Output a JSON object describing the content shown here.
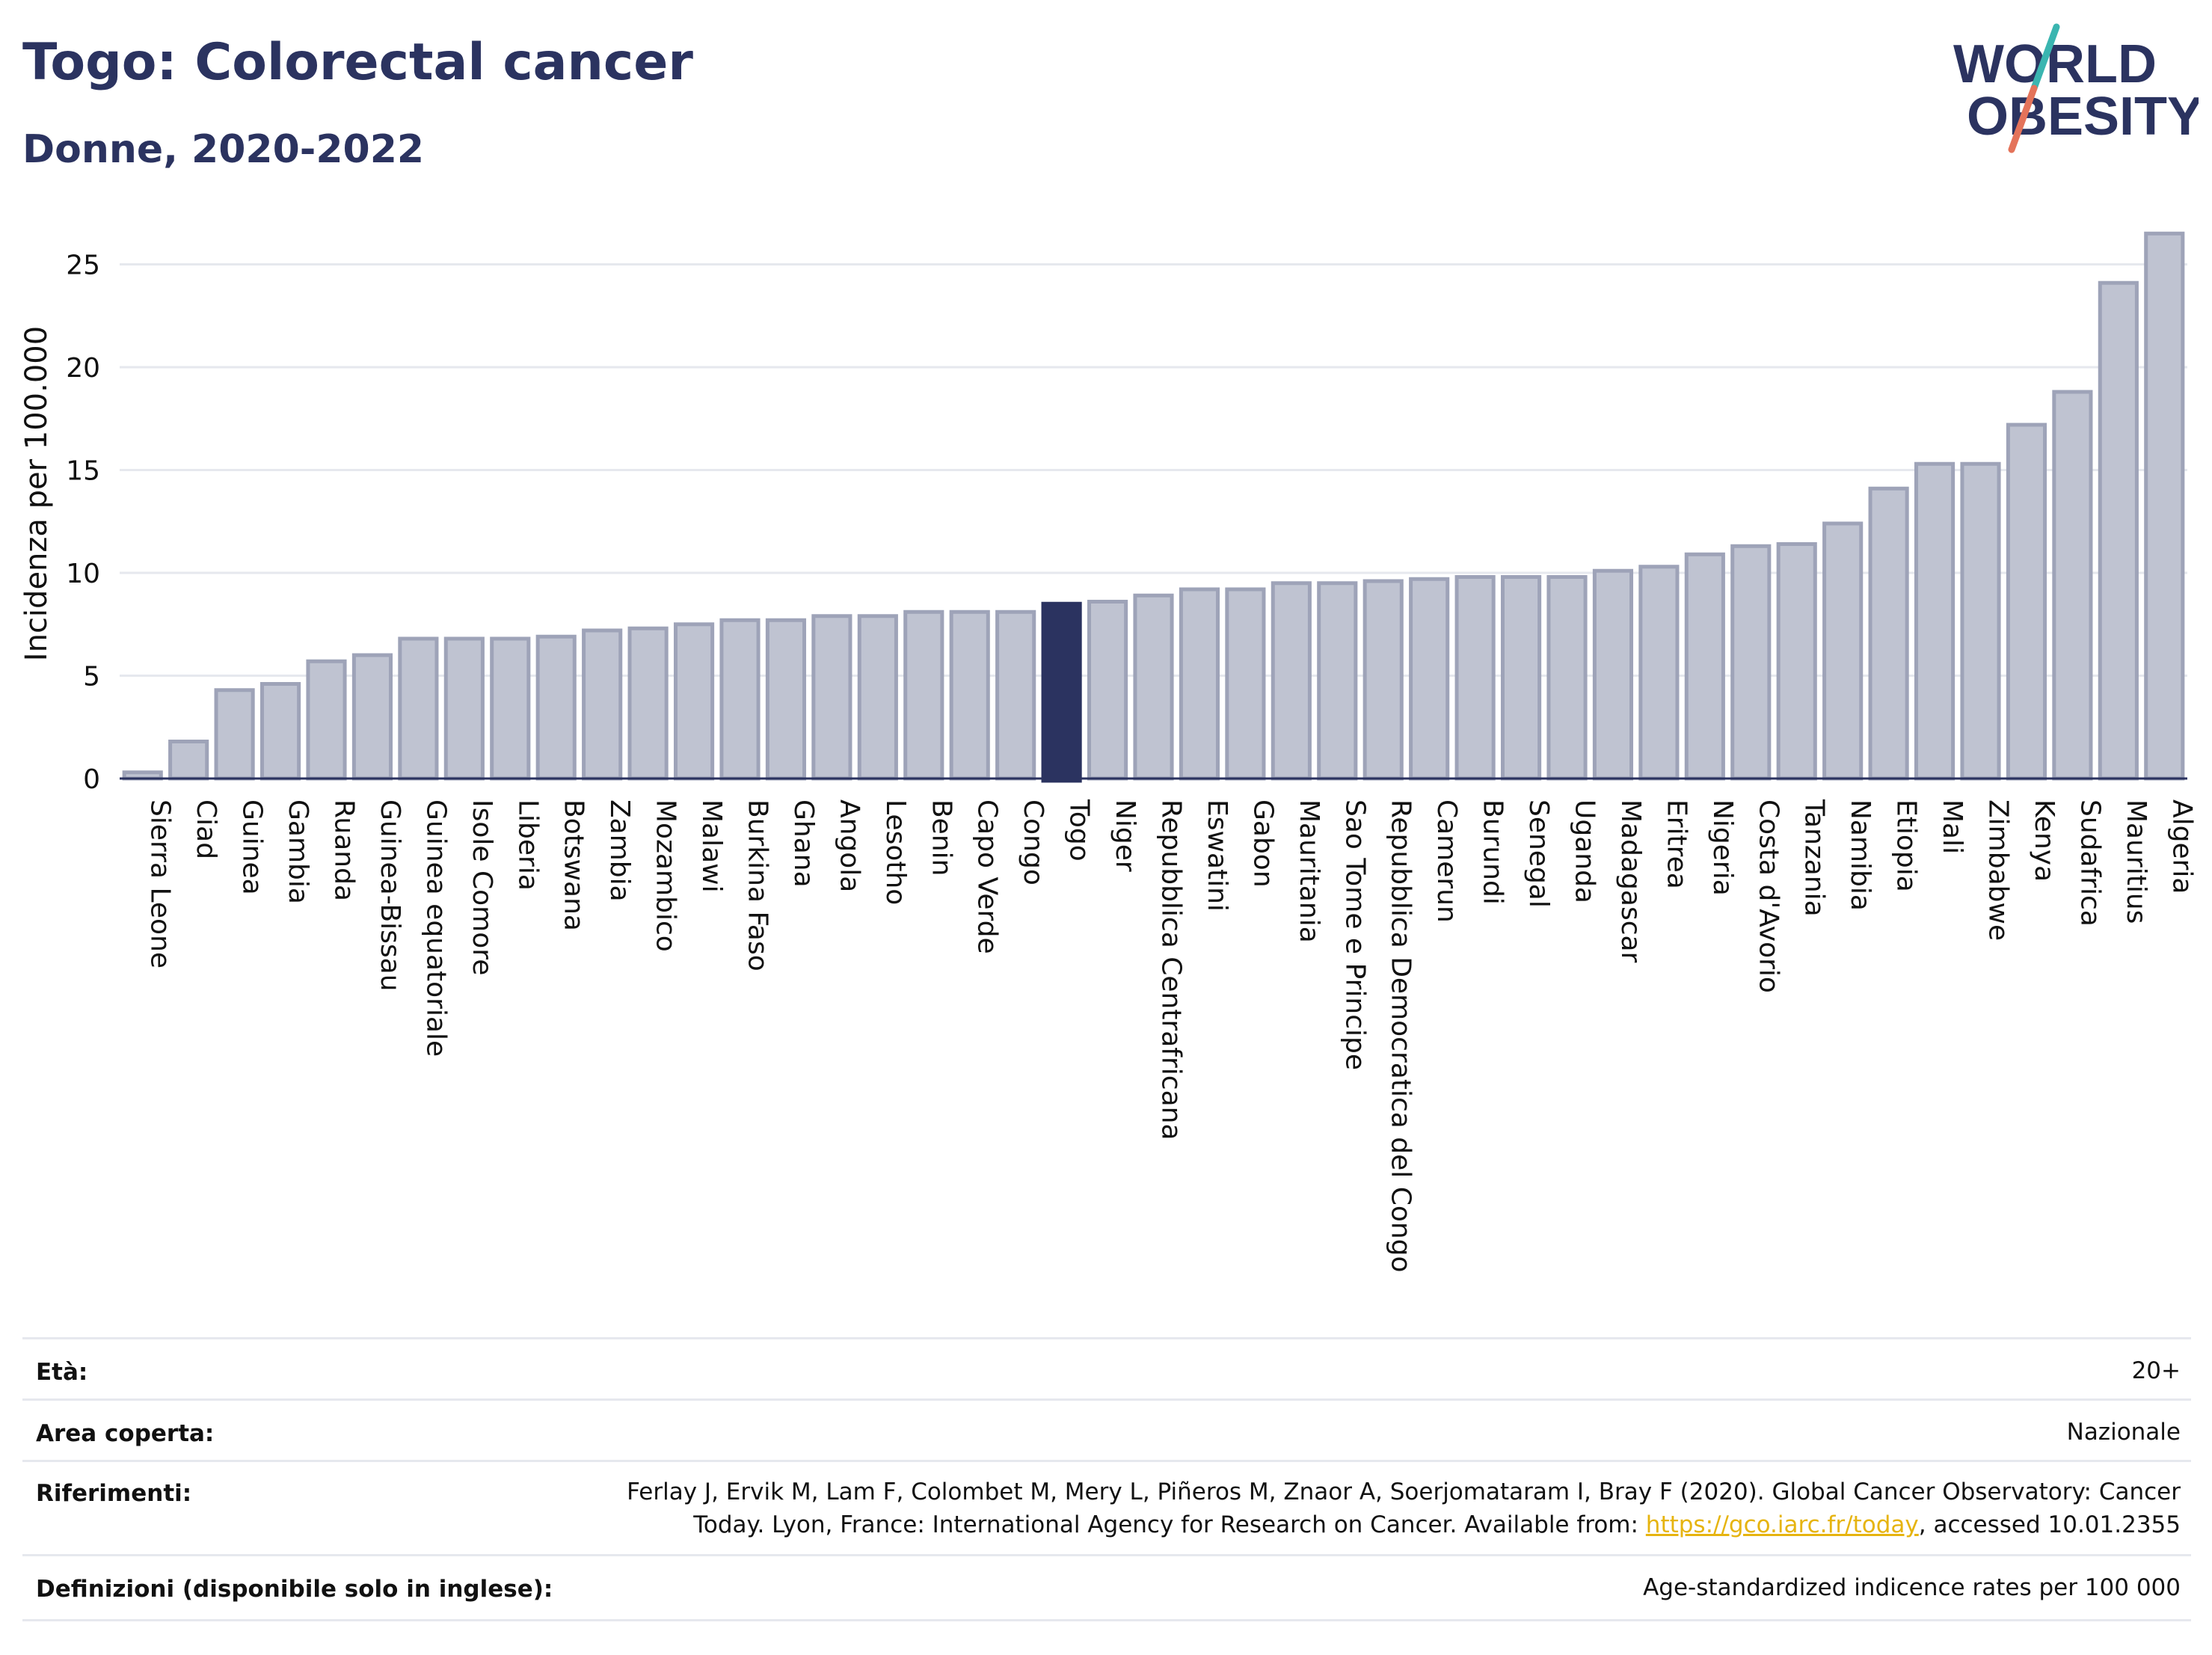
{
  "header": {
    "title": "Togo: Colorectal cancer",
    "subtitle": "Donne, 2020-2022",
    "logo_line1": "WORLD",
    "logo_line2": "OBESITY"
  },
  "colors": {
    "title": "#2b3360",
    "bar": "#bfc3d1",
    "bar_stroke": "#9ea3b8",
    "highlight": "#2b3360",
    "logo_teal": "#3ab5b0",
    "logo_coral": "#e4735a",
    "link": "#e6b410"
  },
  "chart_data": {
    "type": "bar",
    "title": "Togo: Colorectal cancer",
    "subtitle": "Donne, 2020-2022",
    "ylabel": "Incidenza per 100.000",
    "xlabel": "",
    "ylim": [
      0,
      27
    ],
    "yticks": [
      0,
      5,
      10,
      15,
      20,
      25
    ],
    "grid": true,
    "highlight": "Togo",
    "categories": [
      "Sierra Leone",
      "Ciad",
      "Guinea",
      "Gambia",
      "Ruanda",
      "Guinea-Bissau",
      "Guinea equatoriale",
      "Isole Comore",
      "Liberia",
      "Botswana",
      "Zambia",
      "Mozambico",
      "Malawi",
      "Burkina Faso",
      "Ghana",
      "Angola",
      "Lesotho",
      "Benin",
      "Capo Verde",
      "Congo",
      "Togo",
      "Niger",
      "Repubblica Centrafricana",
      "Eswatini",
      "Gabon",
      "Mauritania",
      "Sao Tome e Principe",
      "Repubblica Democratica del Congo",
      "Camerun",
      "Burundi",
      "Senegal",
      "Uganda",
      "Madagascar",
      "Eritrea",
      "Nigeria",
      "Costa d'Avorio",
      "Tanzania",
      "Namibia",
      "Etiopia",
      "Mali",
      "Zimbabwe",
      "Kenya",
      "Sudafrica",
      "Mauritius",
      "Algeria"
    ],
    "values": [
      0.3,
      1.8,
      4.3,
      4.6,
      5.7,
      6.0,
      6.8,
      6.8,
      6.8,
      6.9,
      7.2,
      7.3,
      7.5,
      7.7,
      7.7,
      7.9,
      7.9,
      8.1,
      8.1,
      8.1,
      8.5,
      8.6,
      8.9,
      9.2,
      9.2,
      9.5,
      9.5,
      9.6,
      9.7,
      9.8,
      9.8,
      9.8,
      10.1,
      10.3,
      10.9,
      11.3,
      11.4,
      12.4,
      14.1,
      15.3,
      15.3,
      17.2,
      18.8,
      24.1,
      26.5
    ]
  },
  "meta": {
    "age_label": "Età:",
    "age_value": "20+",
    "area_label": "Area coperta:",
    "area_value": "Nazionale",
    "ref_label": "Riferimenti:",
    "ref_line1": "Ferlay J, Ervik M, Lam F, Colombet M, Mery L, Piñeros M, Znaor A, Soerjomataram I, Bray F (2020). Global Cancer Observatory: Cancer",
    "ref_line2_pre": "Today. Lyon, France: International Agency for Research on Cancer. Available from: ",
    "ref_link": "https://gco.iarc.fr/today",
    "ref_line2_post": ", accessed 10.01.2355",
    "def_label": "Definizioni (disponibile solo in inglese):",
    "def_value": "Age-standardized indicence rates per 100 000"
  }
}
